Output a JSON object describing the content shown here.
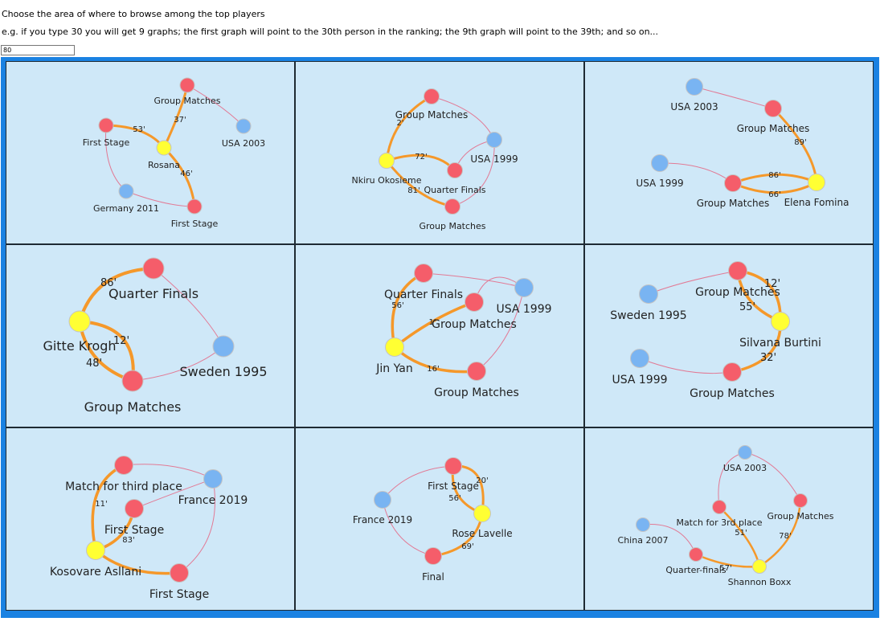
{
  "instructions": {
    "line1": "Choose the area of where to browse among the top players",
    "line2": "e.g. if you type 30 you will get 9 graphs; the first graph will point to the 30th person in the ranking; the 9th graph will point to the 39th; and so on..."
  },
  "input": {
    "value": "80"
  },
  "colors": {
    "frame": "#1a82e2",
    "panel": "#cfe8f8",
    "player": "#ffff33",
    "match": "#f55d6a",
    "tournament": "#79b4f2",
    "strongEdge": "#f5982a",
    "weakEdge": "#e27a95"
  },
  "graphs": [
    {
      "player": "Rosana",
      "labels": [
        "Group Matches",
        "First Stage",
        "USA 2003",
        "Rosana",
        "Germany 2011",
        "First Stage"
      ],
      "minutes": [
        "37'",
        "53'",
        "46'"
      ]
    },
    {
      "player": "Nkiru Okosieme",
      "labels": [
        "Group Matches",
        "USA 1999",
        "Nkiru Okosieme",
        "Quarter Finals",
        "Group Matches"
      ],
      "minutes": [
        "2'",
        "72'",
        "81'"
      ]
    },
    {
      "player": "Elena Fomina",
      "labels": [
        "USA 2003",
        "Group Matches",
        "USA 1999",
        "Group Matches",
        "Elena Fomina"
      ],
      "minutes": [
        "89'",
        "86'",
        "66'"
      ]
    },
    {
      "player": "Gitte Krogh",
      "labels": [
        "Quarter Finals",
        "Gitte Krogh",
        "Sweden 1995",
        "Group Matches"
      ],
      "minutes": [
        "86'",
        "12'",
        "48'"
      ]
    },
    {
      "player": "Jin Yan",
      "labels": [
        "Quarter Finals",
        "USA 1999",
        "Group Matches",
        "Jin Yan",
        "Group Matches"
      ],
      "minutes": [
        "56'",
        "1'",
        "16'"
      ]
    },
    {
      "player": "Silvana Burtini",
      "labels": [
        "Group Matches",
        "Sweden 1995",
        "Silvana Burtini",
        "USA 1999",
        "Group Matches"
      ],
      "minutes": [
        "12'",
        "55'",
        "32'"
      ]
    },
    {
      "player": "Kosovare Asllani",
      "labels": [
        "Match for third place",
        "France 2019",
        "First Stage",
        "Kosovare Asllani",
        "First Stage"
      ],
      "minutes": [
        "11'",
        "83'"
      ]
    },
    {
      "player": "Rose Lavelle",
      "labels": [
        "First Stage",
        "France 2019",
        "Rose Lavelle",
        "Final"
      ],
      "minutes": [
        "20'",
        "56'",
        "69'"
      ]
    },
    {
      "player": "Shannon Boxx",
      "labels": [
        "USA 2003",
        "Group Matches",
        "Match for 3rd place",
        "China 2007",
        "Quarter-finals",
        "Shannon Boxx"
      ],
      "minutes": [
        "51'",
        "78'",
        "57'"
      ]
    }
  ]
}
